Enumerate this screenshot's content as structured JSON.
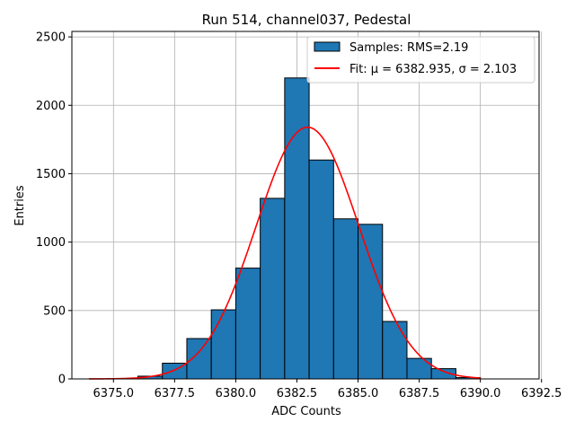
{
  "chart_data": {
    "type": "bar",
    "title": "Run 514, channel037, Pedestal",
    "xlabel": "ADC Counts",
    "ylabel": "Entries",
    "xlim": [
      6373.3,
      6392.4
    ],
    "ylim": [
      0,
      2540
    ],
    "xticks": [
      6375.0,
      6377.5,
      6380.0,
      6382.5,
      6385.0,
      6387.5,
      6390.0,
      6392.5
    ],
    "xtick_labels": [
      "6375.0",
      "6377.5",
      "6380.0",
      "6382.5",
      "6385.0",
      "6387.5",
      "6390.0",
      "6392.5"
    ],
    "yticks": [
      0,
      500,
      1000,
      1500,
      2000,
      2500
    ],
    "ytick_labels": [
      "0",
      "500",
      "1000",
      "1500",
      "2000",
      "2500"
    ],
    "grid": true,
    "legend_position": "top-right",
    "bin_width": 1.0,
    "bins": [
      {
        "left": 6376.0,
        "count": 20
      },
      {
        "left": 6377.0,
        "count": 115
      },
      {
        "left": 6378.0,
        "count": 295
      },
      {
        "left": 6379.0,
        "count": 505
      },
      {
        "left": 6380.0,
        "count": 810
      },
      {
        "left": 6381.0,
        "count": 1320
      },
      {
        "left": 6382.0,
        "count": 2200
      },
      {
        "left": 6383.0,
        "count": 1600
      },
      {
        "left": 6384.0,
        "count": 1170
      },
      {
        "left": 6385.0,
        "count": 1130
      },
      {
        "left": 6386.0,
        "count": 420
      },
      {
        "left": 6387.0,
        "count": 150
      },
      {
        "left": 6388.0,
        "count": 75
      },
      {
        "left": 6389.0,
        "count": 10
      }
    ],
    "bar_color": "#1f77b4",
    "series": [
      {
        "name": "Samples: RMS=2.19",
        "kind": "histogram",
        "color": "#1f77b4"
      },
      {
        "name": "Fit: μ = 6382.935, σ = 2.103",
        "kind": "gaussian-fit",
        "color": "#ff0000",
        "mu": 6382.935,
        "sigma": 2.103,
        "peak": 1840,
        "x_range": [
          6374.0,
          6390.0
        ]
      }
    ]
  }
}
